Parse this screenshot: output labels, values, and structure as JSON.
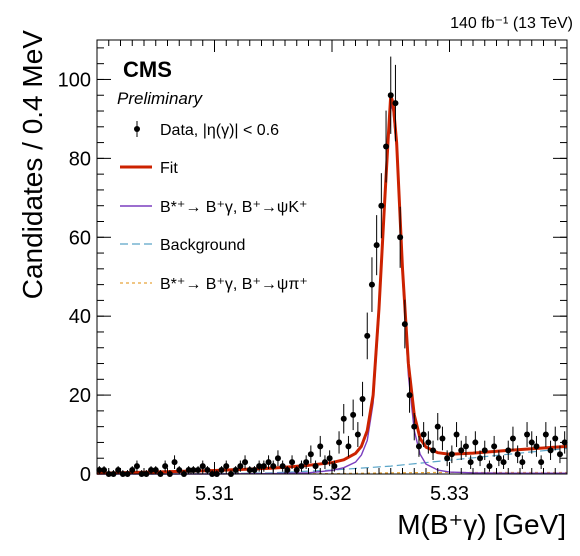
{
  "chart_data": {
    "type": "scatter",
    "lumi_label": "140 fb⁻¹ (13 TeV)",
    "experiment": "CMS",
    "status": "Preliminary",
    "xlabel": "M(B⁺γ) [GeV]",
    "ylabel": "Candidates / 0.4 MeV",
    "xlim": [
      5.3,
      5.34
    ],
    "ylim": [
      0,
      110
    ],
    "x_ticks": [
      "5.31",
      "5.32",
      "5.33"
    ],
    "x_tick_values": [
      5.31,
      5.32,
      5.33
    ],
    "y_ticks": [
      "0",
      "20",
      "40",
      "60",
      "80",
      "100"
    ],
    "y_tick_values": [
      0,
      20,
      40,
      60,
      80,
      100
    ],
    "legend": [
      {
        "label": "Data, |η(γ)| < 0.6",
        "color": "#000000",
        "style": "marker"
      },
      {
        "label": "Fit",
        "color": "#cc2200",
        "style": "solid-thick"
      },
      {
        "label": "B*⁺→ B⁺γ, B⁺→ψK⁺",
        "color": "#7b3fbf",
        "style": "solid"
      },
      {
        "label": "Background",
        "color": "#5aa5c8",
        "style": "dashed"
      },
      {
        "label": "B*⁺→ B⁺γ, B⁺→ψπ⁺",
        "color": "#e8a53a",
        "style": "dotted"
      }
    ],
    "series": [
      {
        "name": "Data, |η(γ)| < 0.6",
        "type": "points",
        "color": "#000000",
        "x": [
          5.3002,
          5.3006,
          5.301,
          5.3014,
          5.3018,
          5.3022,
          5.3026,
          5.303,
          5.3034,
          5.3038,
          5.3042,
          5.3046,
          5.305,
          5.3054,
          5.3058,
          5.3062,
          5.3066,
          5.307,
          5.3074,
          5.3078,
          5.3082,
          5.3086,
          5.309,
          5.3094,
          5.3098,
          5.3102,
          5.3106,
          5.311,
          5.3114,
          5.3118,
          5.3122,
          5.3126,
          5.313,
          5.3134,
          5.3138,
          5.3142,
          5.3146,
          5.315,
          5.3154,
          5.3158,
          5.3162,
          5.3166,
          5.317,
          5.3174,
          5.3178,
          5.3182,
          5.3186,
          5.319,
          5.3194,
          5.3198,
          5.3202,
          5.3206,
          5.321,
          5.3214,
          5.3218,
          5.3222,
          5.3226,
          5.323,
          5.3234,
          5.3238,
          5.3242,
          5.3246,
          5.325,
          5.3254,
          5.3258,
          5.3262,
          5.3266,
          5.327,
          5.3274,
          5.3278,
          5.3282,
          5.3286,
          5.329,
          5.3294,
          5.3298,
          5.3302,
          5.3306,
          5.331,
          5.3314,
          5.3318,
          5.3322,
          5.3326,
          5.333,
          5.3334,
          5.3338,
          5.3342,
          5.3346,
          5.335,
          5.3354,
          5.3358,
          5.3362,
          5.3366,
          5.337,
          5.3374,
          5.3378,
          5.3382,
          5.3386,
          5.339,
          5.3394,
          5.3398
        ],
        "y": [
          1,
          1,
          0,
          0,
          1,
          0,
          0,
          1,
          2,
          0,
          0,
          1,
          1,
          0,
          2,
          0,
          3,
          1,
          0,
          1,
          1,
          1,
          2,
          1,
          0,
          0,
          1,
          2,
          0,
          1,
          2,
          3,
          1,
          1,
          2,
          2,
          3,
          2,
          4,
          2,
          1,
          3,
          1,
          2,
          3,
          5,
          2,
          7,
          3,
          4,
          2,
          8,
          14,
          7,
          15,
          10,
          19,
          35,
          48,
          58,
          68,
          83,
          96,
          94,
          60,
          38,
          20,
          12,
          7,
          10,
          8,
          6,
          12,
          9,
          4,
          5,
          10,
          6,
          7,
          3,
          8,
          4,
          6,
          2,
          7,
          4,
          3,
          6,
          9,
          5,
          3,
          10,
          8,
          7,
          3,
          10,
          6,
          9,
          5,
          8
        ]
      },
      {
        "name": "Fit",
        "type": "curve",
        "color": "#cc2200",
        "x": [
          5.3,
          5.305,
          5.31,
          5.315,
          5.318,
          5.32,
          5.321,
          5.322,
          5.3225,
          5.323,
          5.3235,
          5.324,
          5.3245,
          5.3248,
          5.325,
          5.3252,
          5.3255,
          5.326,
          5.3265,
          5.327,
          5.3275,
          5.328,
          5.329,
          5.33,
          5.332,
          5.335,
          5.34
        ],
        "y": [
          0.2,
          0.5,
          0.9,
          1.5,
          2.2,
          2.9,
          3.6,
          5.2,
          7.0,
          11.0,
          20.0,
          42.0,
          70.0,
          86.0,
          96.0,
          94.0,
          84.0,
          52.0,
          28.0,
          15.0,
          9.0,
          6.8,
          5.4,
          5.0,
          5.3,
          6.0,
          7.0
        ]
      },
      {
        "name": "B*⁺→ B⁺γ, B⁺→ψK⁺",
        "type": "curve",
        "color": "#7b3fbf",
        "x": [
          5.3,
          5.31,
          5.315,
          5.318,
          5.32,
          5.321,
          5.322,
          5.3225,
          5.323,
          5.3235,
          5.324,
          5.3245,
          5.3248,
          5.325,
          5.3252,
          5.3255,
          5.326,
          5.3265,
          5.327,
          5.3275,
          5.328,
          5.329,
          5.33,
          5.332,
          5.335,
          5.34
        ],
        "y": [
          0,
          0,
          0.1,
          0.3,
          0.9,
          1.6,
          3.0,
          4.8,
          8.5,
          18.0,
          40.0,
          68.0,
          84.0,
          94.0,
          92.0,
          82.0,
          50.0,
          25.0,
          11.0,
          5.0,
          2.5,
          1.0,
          0.5,
          0.3,
          0.2,
          0.2
        ]
      },
      {
        "name": "Background",
        "type": "curve",
        "color": "#5aa5c8",
        "x": [
          5.3,
          5.305,
          5.31,
          5.315,
          5.32,
          5.325,
          5.33,
          5.335,
          5.34
        ],
        "y": [
          0,
          0,
          0.05,
          0.3,
          1.0,
          2.0,
          3.5,
          5.0,
          6.5
        ]
      },
      {
        "name": "B*⁺→ B⁺γ, B⁺→ψπ⁺",
        "type": "curve",
        "color": "#e8a53a",
        "x": [
          5.3,
          5.31,
          5.32,
          5.325,
          5.33,
          5.335,
          5.34
        ],
        "y": [
          0,
          0,
          0.1,
          0.3,
          0.4,
          0.4,
          0.4
        ]
      }
    ]
  }
}
